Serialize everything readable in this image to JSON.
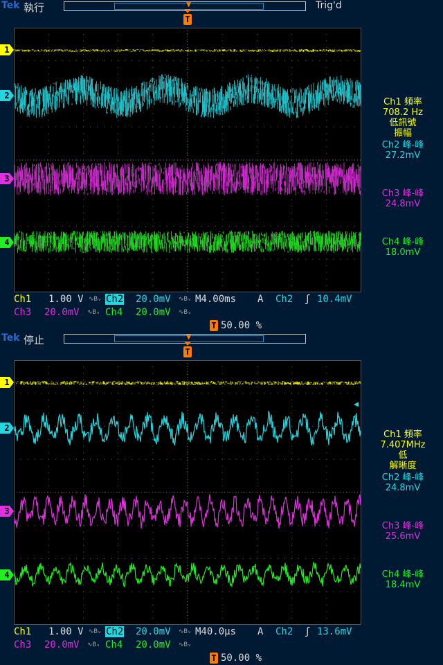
{
  "colors": {
    "ch1": "#ffff00",
    "ch2": "#22d7e0",
    "ch3": "#e030e0",
    "ch4": "#22ee22",
    "trigger": "#ff7a00",
    "brand": "#2a6acc"
  },
  "screens": [
    {
      "brand": "Tek",
      "run_state": "執行",
      "trig_state": "Trig'd",
      "trig_marker": "T",
      "channel_markers": [
        "1",
        "2",
        "3",
        "4"
      ],
      "readouts": {
        "ch1_label": "Ch1 頻率",
        "ch1_value": "708.2 Hz",
        "ch1_note1": "低訊號",
        "ch1_note2": "振幅",
        "ch2_label": "Ch2 峰-峰",
        "ch2_value": "27.2mV",
        "ch3_label": "Ch3 峰-峰",
        "ch3_value": "24.8mV",
        "ch4_label": "Ch4 峰-峰",
        "ch4_value": "18.0mV"
      },
      "bottom": {
        "ch1": "Ch1",
        "ch1_scale": "1.00 V",
        "ch2": "Ch2",
        "ch2_scale": "20.0mV",
        "timebase": "M4.00ms",
        "trig_mode": "A",
        "trig_src": "Ch2",
        "trig_level": "10.4mV",
        "ch3": "Ch3",
        "ch3_scale": "20.0mV",
        "ch4": "Ch4",
        "ch4_scale": "20.0mV",
        "trig_pos": "50.00 %",
        "cpl": "∿Bᵥ"
      }
    },
    {
      "brand": "Tek",
      "run_state": "停止",
      "trig_state": "",
      "trig_marker": "T",
      "channel_markers": [
        "1",
        "2",
        "3",
        "4"
      ],
      "readouts": {
        "ch1_label": "Ch1 頻率",
        "ch1_value": "7.407MHz",
        "ch1_note1": "低",
        "ch1_note2": "解晰度",
        "ch2_label": "Ch2 峰-峰",
        "ch2_value": "24.8mV",
        "ch3_label": "Ch3 峰-峰",
        "ch3_value": "25.6mV",
        "ch4_label": "Ch4 峰-峰",
        "ch4_value": "18.4mV"
      },
      "bottom": {
        "ch1": "Ch1",
        "ch1_scale": "1.00 V",
        "ch2": "Ch2",
        "ch2_scale": "20.0mV",
        "timebase": "M40.0µs",
        "trig_mode": "A",
        "trig_src": "Ch2",
        "trig_level": "13.6mV",
        "ch3": "Ch3",
        "ch3_scale": "20.0mV",
        "ch4": "Ch4",
        "ch4_scale": "20.0mV",
        "trig_pos": "50.00 %",
        "cpl": "∿Bᵥ"
      }
    }
  ]
}
